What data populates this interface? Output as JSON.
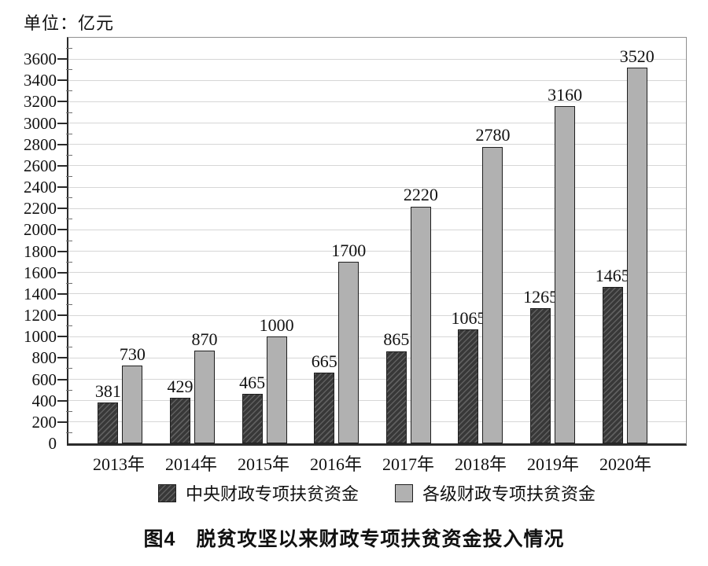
{
  "colors": {
    "dark_bar_fill": "#383838",
    "dark_bar_hatch": "#606060",
    "light_bar_fill": "#b1b1b1",
    "bar_border": "#1f1f1f",
    "grid_line": "#d6d6d6",
    "axis_frame": "#8f8f8f",
    "axis_main": "#2b2b2b",
    "text": "#111111"
  },
  "chart_data": {
    "type": "bar",
    "title": "图4　脱贫攻坚以来财政专项扶贫资金投入情况",
    "unit_label": "单位：亿元",
    "categories": [
      "2013年",
      "2014年",
      "2015年",
      "2016年",
      "2017年",
      "2018年",
      "2019年",
      "2020年"
    ],
    "series": [
      {
        "name": "中央财政专项扶贫资金",
        "style": "dark-hatched",
        "values": [
          381,
          429,
          465,
          665,
          865,
          1065,
          1265,
          1465
        ]
      },
      {
        "name": "各级财政专项扶贫资金",
        "style": "light-solid",
        "values": [
          730,
          870,
          1000,
          1700,
          2220,
          2780,
          3160,
          3520
        ]
      }
    ],
    "ylim": [
      0,
      3800
    ],
    "ytick_step": 200,
    "ytick_labels": [
      "0",
      "200",
      "400",
      "600",
      "800",
      "1000",
      "1200",
      "1400",
      "1600",
      "1800",
      "2000",
      "2200",
      "2400",
      "2600",
      "2800",
      "3000",
      "3200",
      "3400",
      "3600"
    ],
    "minor_tick_step": 100,
    "grid": true,
    "bar_value_labels": true,
    "legend_position": "bottom"
  }
}
